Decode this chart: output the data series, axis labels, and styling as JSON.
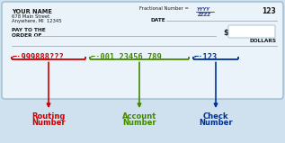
{
  "bg_color": "#cfe0ee",
  "check_bg": "#eaf3fa",
  "check_border": "#9bbccc",
  "name_line1": "YOUR NAME",
  "name_line2": "678 Main Street",
  "name_line3": "Anywhere, MI  12345",
  "fractional_label": "Fractional Number = ",
  "fractional_top": "YYYY",
  "fractional_bottom": "ZZZZ",
  "check_num": "123",
  "date_label": "DATE",
  "pay_label": "PAY TO THE",
  "order_label": "ORDER OF",
  "dollar_sign": "$",
  "dollars_label": "DOLLARS",
  "micr_routing": ":999888???",
  "micr_account": ":001 23456 789",
  "micr_check": ":123",
  "routing_label1": "Routing",
  "routing_label2": "Number",
  "account_label1": "Account",
  "account_label2": "Number",
  "check_label1": "Check",
  "check_label2": "Number",
  "routing_color": "#cc0000",
  "account_color": "#448800",
  "check_color": "#003399",
  "text_color": "#1a1a1a",
  "line_color": "#aaaaaa",
  "frac_color": "#334499"
}
